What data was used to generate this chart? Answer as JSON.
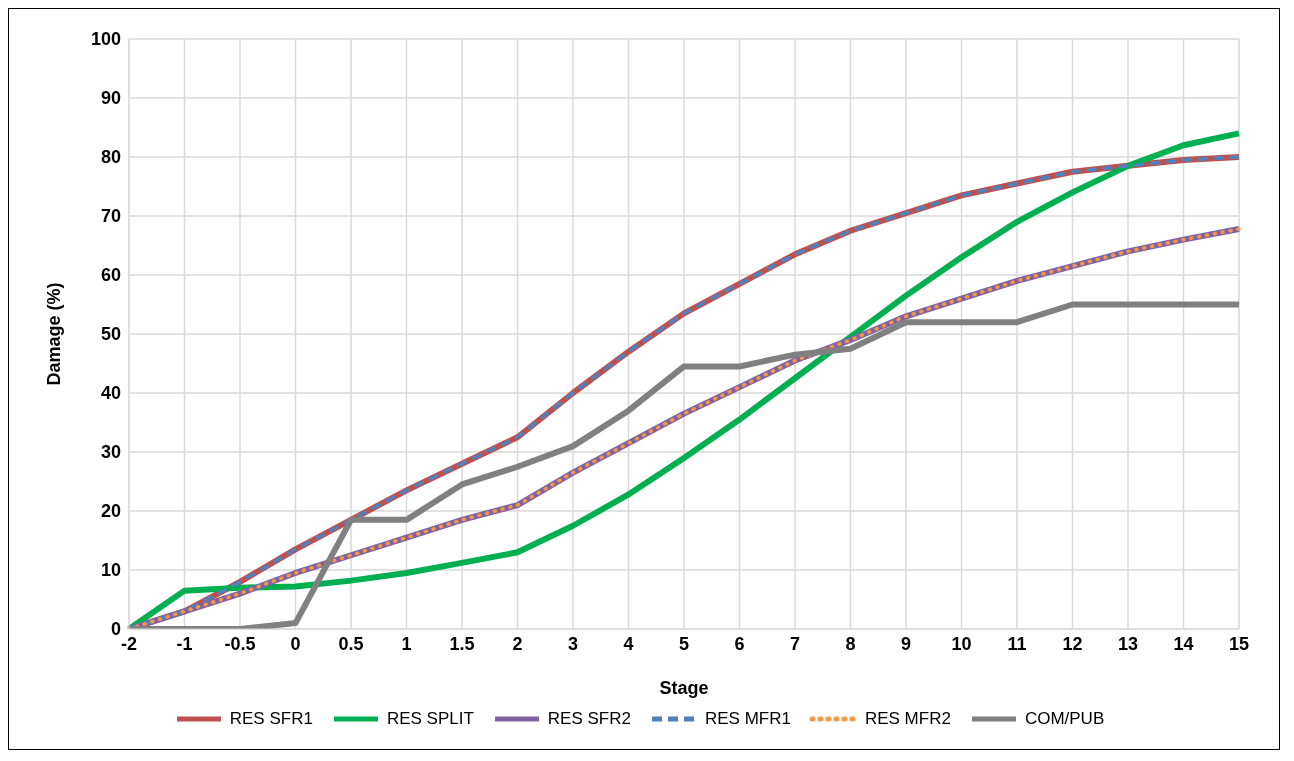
{
  "chart_data": {
    "type": "line",
    "xlabel": "Stage",
    "ylabel": "Damage (%)",
    "categories": [
      "-2",
      "-1",
      "-0.5",
      "0",
      "0.5",
      "1",
      "1.5",
      "2",
      "3",
      "4",
      "5",
      "6",
      "7",
      "8",
      "9",
      "10",
      "11",
      "12",
      "13",
      "14",
      "15"
    ],
    "ylim": [
      0,
      100
    ],
    "yticks": [
      0,
      10,
      20,
      30,
      40,
      50,
      60,
      70,
      80,
      90,
      100
    ],
    "grid": true,
    "legend": "bottom",
    "marker": "none",
    "series": [
      {
        "name": "RES SFR1",
        "color": "#c0504d",
        "line_style": "solid",
        "values": [
          0,
          3,
          8,
          13.5,
          18.5,
          23.5,
          28,
          32.5,
          40,
          47,
          53.5,
          58.5,
          63.5,
          67.5,
          70.5,
          73.5,
          75.5,
          77.5,
          78.5,
          79.5,
          80
        ]
      },
      {
        "name": "RES SPLIT",
        "color": "#00b050",
        "line_style": "solid",
        "values": [
          0,
          6.5,
          7,
          7.2,
          8.2,
          9.5,
          11.2,
          13,
          17.5,
          22.8,
          29,
          35.5,
          42.5,
          49.5,
          56.5,
          63,
          69,
          74,
          78.5,
          82,
          84
        ]
      },
      {
        "name": "RES SFR2",
        "color": "#8064a2",
        "line_style": "solid",
        "values": [
          0,
          3,
          6,
          9.5,
          12.5,
          15.5,
          18.5,
          21,
          26.5,
          31.5,
          36.5,
          41,
          45.5,
          49,
          53,
          56,
          59,
          61.5,
          64,
          66,
          67.8
        ]
      },
      {
        "name": "RES MFR1",
        "color": "#4f81bd",
        "line_style": "dashed",
        "values": [
          0,
          3,
          8,
          13.5,
          18.5,
          23.5,
          28,
          32.5,
          40,
          47,
          53.5,
          58.5,
          63.5,
          67.5,
          70.5,
          73.5,
          75.5,
          77.5,
          78.5,
          79.5,
          80
        ]
      },
      {
        "name": "RES MFR2",
        "color": "#f79646",
        "line_style": "dotted",
        "values": [
          0,
          3,
          6,
          9.5,
          12.5,
          15.5,
          18.5,
          21,
          26.5,
          31.5,
          36.5,
          41,
          45.5,
          49,
          53,
          56,
          59,
          61.5,
          64,
          66,
          67.8
        ]
      },
      {
        "name": "COM/PUB",
        "color": "#808080",
        "line_style": "solid",
        "values": [
          0,
          0,
          0,
          1,
          18.5,
          18.5,
          24.5,
          27.5,
          31,
          37,
          44.5,
          44.5,
          46.5,
          47.5,
          52,
          52,
          52,
          55,
          55,
          55,
          55
        ]
      }
    ]
  }
}
